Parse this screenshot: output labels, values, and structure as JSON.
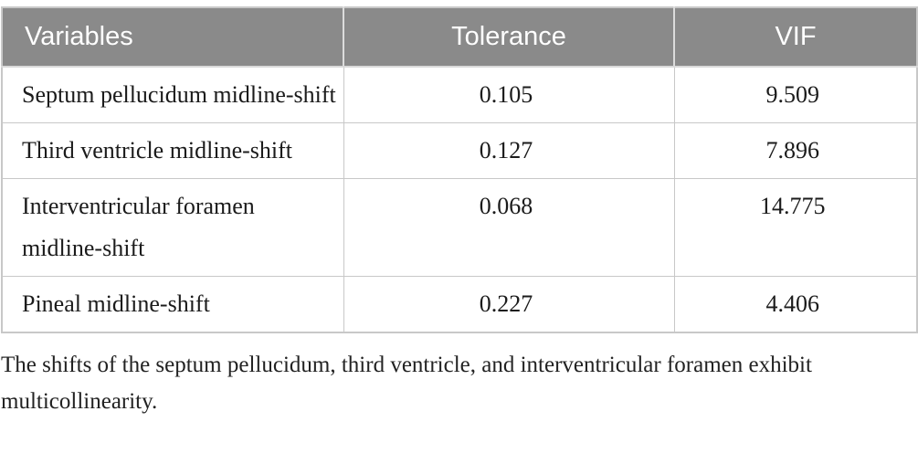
{
  "table": {
    "columns": [
      {
        "key": "variable",
        "label": "Variables"
      },
      {
        "key": "tolerance",
        "label": "Tolerance"
      },
      {
        "key": "vif",
        "label": "VIF"
      }
    ],
    "rows": [
      {
        "variable": "Septum pellucidum midline-shift",
        "tolerance": "0.105",
        "vif": "9.509"
      },
      {
        "variable": "Third ventricle midline-shift",
        "tolerance": "0.127",
        "vif": "7.896"
      },
      {
        "variable": "Interventricular foramen midline-shift",
        "tolerance": "0.068",
        "vif": "14.775"
      },
      {
        "variable": "Pineal midline-shift",
        "tolerance": "0.227",
        "vif": "4.406"
      }
    ]
  },
  "footnote": "The shifts of the septum pellucidum, third ventricle, and interventricular foramen exhibit multicollinearity.",
  "colors": {
    "header_bg": "#8a8a8a",
    "header_text": "#ffffff",
    "body_text": "#1b1b1b",
    "grid_line": "#c8c8c8"
  }
}
